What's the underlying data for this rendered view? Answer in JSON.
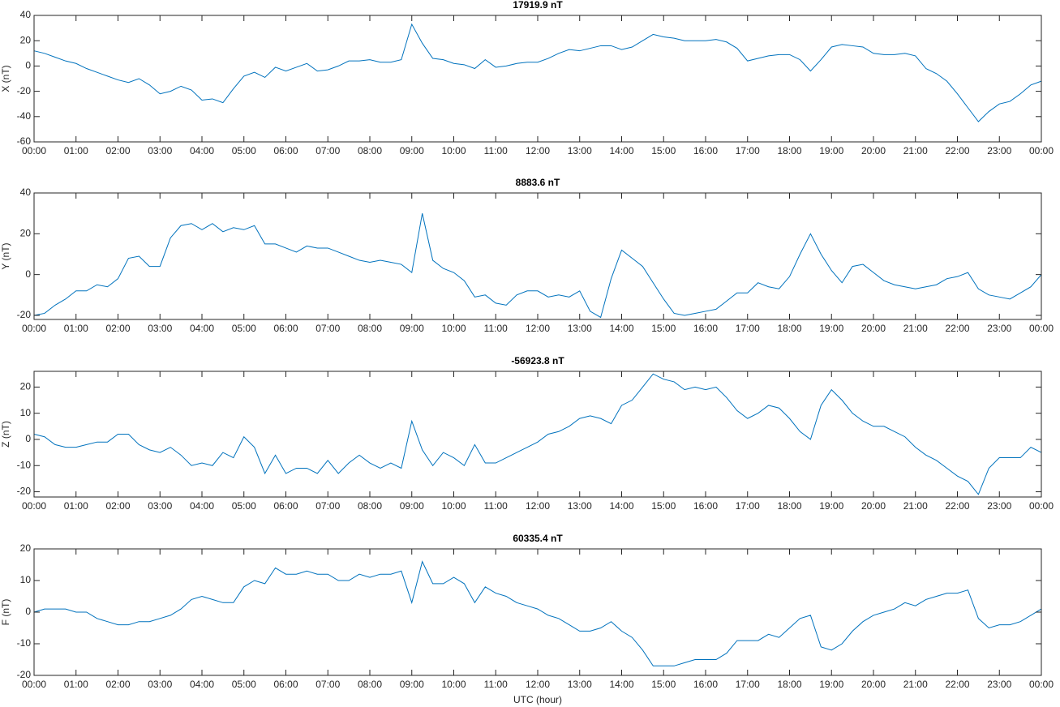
{
  "chart_data": [
    {
      "type": "line",
      "title": "17919.9 nT",
      "y_label": "X (nT)",
      "color": "#0072bd",
      "x": [
        0,
        0.25,
        0.5,
        0.75,
        1,
        1.25,
        1.5,
        1.75,
        2,
        2.25,
        2.5,
        2.75,
        3,
        3.25,
        3.5,
        3.75,
        4,
        4.25,
        4.5,
        4.75,
        5,
        5.25,
        5.5,
        5.75,
        6,
        6.25,
        6.5,
        6.75,
        7,
        7.25,
        7.5,
        7.75,
        8,
        8.25,
        8.5,
        8.75,
        9,
        9.25,
        9.5,
        9.75,
        10,
        10.25,
        10.5,
        10.75,
        11,
        11.25,
        11.5,
        11.75,
        12,
        12.25,
        12.5,
        12.75,
        13,
        13.25,
        13.5,
        13.75,
        14,
        14.25,
        14.5,
        14.75,
        15,
        15.25,
        15.5,
        15.75,
        16,
        16.25,
        16.5,
        16.75,
        17,
        17.25,
        17.5,
        17.75,
        18,
        18.25,
        18.5,
        18.75,
        19,
        19.25,
        19.5,
        19.75,
        20,
        20.25,
        20.5,
        20.75,
        21,
        21.25,
        21.5,
        21.75,
        22,
        22.25,
        22.5,
        22.75,
        23,
        23.25,
        23.5,
        23.75,
        24
      ],
      "values": [
        12,
        10,
        7,
        4,
        2,
        -2,
        -5,
        -8,
        -11,
        -13,
        -10,
        -15,
        -22,
        -20,
        -16,
        -19,
        -27,
        -26,
        -29,
        -18,
        -8,
        -5,
        -9,
        -1,
        -4,
        -1,
        2,
        -4,
        -3,
        0,
        4,
        4,
        5,
        3,
        3,
        5,
        33,
        18,
        6,
        5,
        2,
        1,
        -2,
        5,
        -1,
        0,
        2,
        3,
        3,
        6,
        10,
        13,
        12,
        14,
        16,
        16,
        13,
        15,
        20,
        25,
        23,
        22,
        20,
        20,
        20,
        21,
        19,
        14,
        4,
        6,
        8,
        9,
        9,
        5,
        -4,
        5,
        15,
        17,
        16,
        15,
        10,
        9,
        9,
        10,
        8,
        -2,
        -6,
        -12,
        -22,
        -33,
        -44,
        -36,
        -30,
        -28,
        -22,
        -15,
        -12
      ],
      "xlim": [
        0,
        24
      ],
      "ylim": [
        -60,
        40
      ],
      "yticks": [
        -60,
        -40,
        -20,
        0,
        20,
        40
      ],
      "xticks": [
        {
          "value": 0,
          "label": "00:00"
        },
        {
          "value": 1,
          "label": "01:00"
        },
        {
          "value": 2,
          "label": "02:00"
        },
        {
          "value": 3,
          "label": "03:00"
        },
        {
          "value": 4,
          "label": "04:00"
        },
        {
          "value": 5,
          "label": "05:00"
        },
        {
          "value": 6,
          "label": "06:00"
        },
        {
          "value": 7,
          "label": "07:00"
        },
        {
          "value": 8,
          "label": "08:00"
        },
        {
          "value": 9,
          "label": "09:00"
        },
        {
          "value": 10,
          "label": "10:00"
        },
        {
          "value": 11,
          "label": "11:00"
        },
        {
          "value": 12,
          "label": "12:00"
        },
        {
          "value": 13,
          "label": "13:00"
        },
        {
          "value": 14,
          "label": "14:00"
        },
        {
          "value": 15,
          "label": "15:00"
        },
        {
          "value": 16,
          "label": "16:00"
        },
        {
          "value": 17,
          "label": "17:00"
        },
        {
          "value": 18,
          "label": "18:00"
        },
        {
          "value": 19,
          "label": "19:00"
        },
        {
          "value": 20,
          "label": "20:00"
        },
        {
          "value": 21,
          "label": "21:00"
        },
        {
          "value": 22,
          "label": "22:00"
        },
        {
          "value": 23,
          "label": "23:00"
        },
        {
          "value": 24,
          "label": "00:00"
        }
      ]
    },
    {
      "type": "line",
      "title": "8883.6 nT",
      "y_label": "Y (nT)",
      "color": "#0072bd",
      "x": [
        0,
        0.25,
        0.5,
        0.75,
        1,
        1.25,
        1.5,
        1.75,
        2,
        2.25,
        2.5,
        2.75,
        3,
        3.25,
        3.5,
        3.75,
        4,
        4.25,
        4.5,
        4.75,
        5,
        5.25,
        5.5,
        5.75,
        6,
        6.25,
        6.5,
        6.75,
        7,
        7.25,
        7.5,
        7.75,
        8,
        8.25,
        8.5,
        8.75,
        9,
        9.25,
        9.5,
        9.75,
        10,
        10.25,
        10.5,
        10.75,
        11,
        11.25,
        11.5,
        11.75,
        12,
        12.25,
        12.5,
        12.75,
        13,
        13.25,
        13.5,
        13.75,
        14,
        14.25,
        14.5,
        14.75,
        15,
        15.25,
        15.5,
        15.75,
        16,
        16.25,
        16.5,
        16.75,
        17,
        17.25,
        17.5,
        17.75,
        18,
        18.25,
        18.5,
        18.75,
        19,
        19.25,
        19.5,
        19.75,
        20,
        20.25,
        20.5,
        20.75,
        21,
        21.25,
        21.5,
        21.75,
        22,
        22.25,
        22.5,
        22.75,
        23,
        23.25,
        23.5,
        23.75,
        24
      ],
      "values": [
        -20,
        -19,
        -15,
        -12,
        -8,
        -8,
        -5,
        -6,
        -2,
        8,
        9,
        4,
        4,
        18,
        24,
        25,
        22,
        25,
        21,
        23,
        22,
        24,
        15,
        15,
        13,
        11,
        14,
        13,
        13,
        11,
        9,
        7,
        6,
        7,
        6,
        5,
        1,
        30,
        7,
        3,
        1,
        -3,
        -11,
        -10,
        -14,
        -15,
        -10,
        -8,
        -8,
        -11,
        -10,
        -11,
        -8,
        -18,
        -21,
        -2,
        12,
        8,
        4,
        -4,
        -12,
        -19,
        -20,
        -19,
        -18,
        -17,
        -13,
        -9,
        -9,
        -4,
        -6,
        -7,
        -1,
        10,
        20,
        10,
        2,
        -4,
        4,
        5,
        1,
        -3,
        -5,
        -6,
        -7,
        -6,
        -5,
        -2,
        -1,
        1,
        -7,
        -10,
        -11,
        -12,
        -9,
        -6,
        0
      ],
      "xlim": [
        0,
        24
      ],
      "ylim": [
        -22,
        40
      ],
      "yticks": [
        -20,
        0,
        20,
        40
      ],
      "xticks": [
        {
          "value": 0,
          "label": "00:00"
        },
        {
          "value": 1,
          "label": "01:00"
        },
        {
          "value": 2,
          "label": "02:00"
        },
        {
          "value": 3,
          "label": "03:00"
        },
        {
          "value": 4,
          "label": "04:00"
        },
        {
          "value": 5,
          "label": "05:00"
        },
        {
          "value": 6,
          "label": "06:00"
        },
        {
          "value": 7,
          "label": "07:00"
        },
        {
          "value": 8,
          "label": "08:00"
        },
        {
          "value": 9,
          "label": "09:00"
        },
        {
          "value": 10,
          "label": "10:00"
        },
        {
          "value": 11,
          "label": "11:00"
        },
        {
          "value": 12,
          "label": "12:00"
        },
        {
          "value": 13,
          "label": "13:00"
        },
        {
          "value": 14,
          "label": "14:00"
        },
        {
          "value": 15,
          "label": "15:00"
        },
        {
          "value": 16,
          "label": "16:00"
        },
        {
          "value": 17,
          "label": "17:00"
        },
        {
          "value": 18,
          "label": "18:00"
        },
        {
          "value": 19,
          "label": "19:00"
        },
        {
          "value": 20,
          "label": "20:00"
        },
        {
          "value": 21,
          "label": "21:00"
        },
        {
          "value": 22,
          "label": "22:00"
        },
        {
          "value": 23,
          "label": "23:00"
        },
        {
          "value": 24,
          "label": "00:00"
        }
      ]
    },
    {
      "type": "line",
      "title": "-56923.8 nT",
      "y_label": "Z (nT)",
      "color": "#0072bd",
      "x": [
        0,
        0.25,
        0.5,
        0.75,
        1,
        1.25,
        1.5,
        1.75,
        2,
        2.25,
        2.5,
        2.75,
        3,
        3.25,
        3.5,
        3.75,
        4,
        4.25,
        4.5,
        4.75,
        5,
        5.25,
        5.5,
        5.75,
        6,
        6.25,
        6.5,
        6.75,
        7,
        7.25,
        7.5,
        7.75,
        8,
        8.25,
        8.5,
        8.75,
        9,
        9.25,
        9.5,
        9.75,
        10,
        10.25,
        10.5,
        10.75,
        11,
        11.25,
        11.5,
        11.75,
        12,
        12.25,
        12.5,
        12.75,
        13,
        13.25,
        13.5,
        13.75,
        14,
        14.25,
        14.5,
        14.75,
        15,
        15.25,
        15.5,
        15.75,
        16,
        16.25,
        16.5,
        16.75,
        17,
        17.25,
        17.5,
        17.75,
        18,
        18.25,
        18.5,
        18.75,
        19,
        19.25,
        19.5,
        19.75,
        20,
        20.25,
        20.5,
        20.75,
        21,
        21.25,
        21.5,
        21.75,
        22,
        22.25,
        22.5,
        22.75,
        23,
        23.25,
        23.5,
        23.75,
        24
      ],
      "values": [
        2,
        1,
        -2,
        -3,
        -3,
        -2,
        -1,
        -1,
        2,
        2,
        -2,
        -4,
        -5,
        -3,
        -6,
        -10,
        -9,
        -10,
        -5,
        -7,
        1,
        -3,
        -13,
        -6,
        -13,
        -11,
        -11,
        -13,
        -8,
        -13,
        -9,
        -6,
        -9,
        -11,
        -9,
        -11,
        7,
        -4,
        -10,
        -5,
        -7,
        -10,
        -2,
        -9,
        -9,
        -7,
        -5,
        -3,
        -1,
        2,
        3,
        5,
        8,
        9,
        8,
        6,
        13,
        15,
        20,
        25,
        23,
        22,
        19,
        20,
        19,
        20,
        16,
        11,
        8,
        10,
        13,
        12,
        8,
        3,
        0,
        13,
        19,
        15,
        10,
        7,
        5,
        5,
        3,
        1,
        -3,
        -6,
        -8,
        -11,
        -14,
        -16,
        -21,
        -11,
        -7,
        -7,
        -7,
        -3,
        -5
      ],
      "xlim": [
        0,
        24
      ],
      "ylim": [
        -22,
        26
      ],
      "yticks": [
        -20,
        -10,
        0,
        10,
        20
      ],
      "xticks": [
        {
          "value": 0,
          "label": "00:00"
        },
        {
          "value": 1,
          "label": "01:00"
        },
        {
          "value": 2,
          "label": "02:00"
        },
        {
          "value": 3,
          "label": "03:00"
        },
        {
          "value": 4,
          "label": "04:00"
        },
        {
          "value": 5,
          "label": "05:00"
        },
        {
          "value": 6,
          "label": "06:00"
        },
        {
          "value": 7,
          "label": "07:00"
        },
        {
          "value": 8,
          "label": "08:00"
        },
        {
          "value": 9,
          "label": "09:00"
        },
        {
          "value": 10,
          "label": "10:00"
        },
        {
          "value": 11,
          "label": "11:00"
        },
        {
          "value": 12,
          "label": "12:00"
        },
        {
          "value": 13,
          "label": "13:00"
        },
        {
          "value": 14,
          "label": "14:00"
        },
        {
          "value": 15,
          "label": "15:00"
        },
        {
          "value": 16,
          "label": "16:00"
        },
        {
          "value": 17,
          "label": "17:00"
        },
        {
          "value": 18,
          "label": "18:00"
        },
        {
          "value": 19,
          "label": "19:00"
        },
        {
          "value": 20,
          "label": "20:00"
        },
        {
          "value": 21,
          "label": "21:00"
        },
        {
          "value": 22,
          "label": "22:00"
        },
        {
          "value": 23,
          "label": "23:00"
        },
        {
          "value": 24,
          "label": "00:00"
        }
      ]
    },
    {
      "type": "line",
      "title": "60335.4 nT",
      "y_label": "F (nT)",
      "x_label": "UTC (hour)",
      "color": "#0072bd",
      "x": [
        0,
        0.25,
        0.5,
        0.75,
        1,
        1.25,
        1.5,
        1.75,
        2,
        2.25,
        2.5,
        2.75,
        3,
        3.25,
        3.5,
        3.75,
        4,
        4.25,
        4.5,
        4.75,
        5,
        5.25,
        5.5,
        5.75,
        6,
        6.25,
        6.5,
        6.75,
        7,
        7.25,
        7.5,
        7.75,
        8,
        8.25,
        8.5,
        8.75,
        9,
        9.25,
        9.5,
        9.75,
        10,
        10.25,
        10.5,
        10.75,
        11,
        11.25,
        11.5,
        11.75,
        12,
        12.25,
        12.5,
        12.75,
        13,
        13.25,
        13.5,
        13.75,
        14,
        14.25,
        14.5,
        14.75,
        15,
        15.25,
        15.5,
        15.75,
        16,
        16.25,
        16.5,
        16.75,
        17,
        17.25,
        17.5,
        17.75,
        18,
        18.25,
        18.5,
        18.75,
        19,
        19.25,
        19.5,
        19.75,
        20,
        20.25,
        20.5,
        20.75,
        21,
        21.25,
        21.5,
        21.75,
        22,
        22.25,
        22.5,
        22.75,
        23,
        23.25,
        23.5,
        23.75,
        24
      ],
      "values": [
        0,
        1,
        1,
        1,
        0,
        0,
        -2,
        -3,
        -4,
        -4,
        -3,
        -3,
        -2,
        -1,
        1,
        4,
        5,
        4,
        3,
        3,
        8,
        10,
        9,
        14,
        12,
        12,
        13,
        12,
        12,
        10,
        10,
        12,
        11,
        12,
        12,
        13,
        3,
        16,
        9,
        9,
        11,
        9,
        3,
        8,
        6,
        5,
        3,
        2,
        1,
        -1,
        -2,
        -4,
        -6,
        -6,
        -5,
        -3,
        -6,
        -8,
        -12,
        -17,
        -17,
        -17,
        -16,
        -15,
        -15,
        -15,
        -13,
        -9,
        -9,
        -9,
        -7,
        -8,
        -5,
        -2,
        -1,
        -11,
        -12,
        -10,
        -6,
        -3,
        -1,
        0,
        1,
        3,
        2,
        4,
        5,
        6,
        6,
        7,
        -2,
        -5,
        -4,
        -4,
        -3,
        -1,
        1
      ],
      "xlim": [
        0,
        24
      ],
      "ylim": [
        -20,
        20
      ],
      "yticks": [
        -20,
        -10,
        0,
        10,
        20
      ],
      "xticks": [
        {
          "value": 0,
          "label": "00:00"
        },
        {
          "value": 1,
          "label": "01:00"
        },
        {
          "value": 2,
          "label": "02:00"
        },
        {
          "value": 3,
          "label": "03:00"
        },
        {
          "value": 4,
          "label": "04:00"
        },
        {
          "value": 5,
          "label": "05:00"
        },
        {
          "value": 6,
          "label": "06:00"
        },
        {
          "value": 7,
          "label": "07:00"
        },
        {
          "value": 8,
          "label": "08:00"
        },
        {
          "value": 9,
          "label": "09:00"
        },
        {
          "value": 10,
          "label": "10:00"
        },
        {
          "value": 11,
          "label": "11:00"
        },
        {
          "value": 12,
          "label": "12:00"
        },
        {
          "value": 13,
          "label": "13:00"
        },
        {
          "value": 14,
          "label": "14:00"
        },
        {
          "value": 15,
          "label": "15:00"
        },
        {
          "value": 16,
          "label": "16:00"
        },
        {
          "value": 17,
          "label": "17:00"
        },
        {
          "value": 18,
          "label": "18:00"
        },
        {
          "value": 19,
          "label": "19:00"
        },
        {
          "value": 20,
          "label": "20:00"
        },
        {
          "value": 21,
          "label": "21:00"
        },
        {
          "value": 22,
          "label": "22:00"
        },
        {
          "value": 23,
          "label": "23:00"
        },
        {
          "value": 24,
          "label": "00:00"
        }
      ]
    }
  ]
}
